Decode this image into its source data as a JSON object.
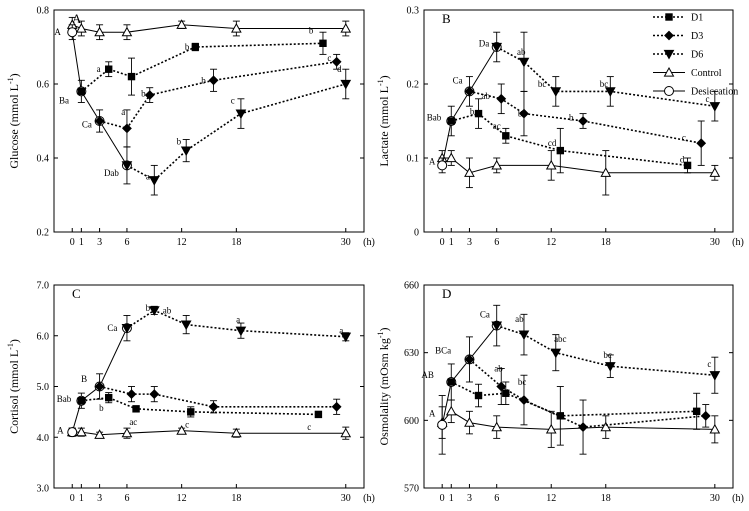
{
  "chart_data": [
    {
      "panel": "A",
      "type": "line",
      "ylabel": "Glucose (mmol L",
      "ylabel_sup": "-1",
      "ylabel_close": ")",
      "ylim": [
        0.2,
        0.8
      ],
      "yticks": [
        0.2,
        0.4,
        0.6,
        0.8
      ],
      "ytick_labels": [
        "0.2",
        "0.4",
        "0.6",
        "0.8"
      ],
      "series": [
        {
          "name": "Control",
          "x": [
            0,
            1,
            3,
            6,
            12,
            18,
            30
          ],
          "y": [
            0.76,
            0.75,
            0.74,
            0.74,
            0.76,
            0.75,
            0.75
          ],
          "err": [
            0.02,
            0.02,
            0.02,
            0.02,
            0.01,
            0.02,
            0.02
          ]
        },
        {
          "name": "Desiccation",
          "x": [
            0,
            1,
            3,
            6
          ],
          "y": [
            0.74,
            0.58,
            0.5,
            0.38
          ],
          "err": [
            0.02,
            0.03,
            0.03,
            0.05
          ]
        },
        {
          "name": "D1",
          "x": [
            1,
            4,
            6.5,
            13.5,
            27.5
          ],
          "y": [
            0.58,
            0.64,
            0.62,
            0.7,
            0.71
          ],
          "err": [
            0.0,
            0.02,
            0.05,
            0.01,
            0.03
          ]
        },
        {
          "name": "D3",
          "x": [
            3,
            6,
            8.5,
            15.5,
            29
          ],
          "y": [
            0.5,
            0.48,
            0.57,
            0.61,
            0.66
          ],
          "err": [
            0.0,
            0.05,
            0.02,
            0.03,
            0.02
          ]
        },
        {
          "name": "D6",
          "x": [
            6,
            9,
            12.5,
            18.5,
            30
          ],
          "y": [
            0.38,
            0.34,
            0.42,
            0.52,
            0.6
          ],
          "err": [
            0.0,
            0.04,
            0.03,
            0.04,
            0.04
          ]
        }
      ],
      "annotations": [
        {
          "text": "A",
          "x": -1.6,
          "y": 0.74
        },
        {
          "text": "Ba",
          "x": -0.9,
          "y": 0.555
        },
        {
          "text": "Ca",
          "x": 1.6,
          "y": 0.49
        },
        {
          "text": "Dab",
          "x": 4.3,
          "y": 0.36
        },
        {
          "text": "a",
          "x": 2.9,
          "y": 0.64
        },
        {
          "text": "a",
          "x": 5.6,
          "y": 0.525
        },
        {
          "text": "b",
          "x": 12.6,
          "y": 0.7
        },
        {
          "text": "b",
          "x": 26.2,
          "y": 0.745
        },
        {
          "text": "b",
          "x": 7.8,
          "y": 0.575
        },
        {
          "text": "b",
          "x": 14.4,
          "y": 0.61
        },
        {
          "text": "c",
          "x": 28.2,
          "y": 0.67
        },
        {
          "text": "a",
          "x": 8.3,
          "y": 0.35
        },
        {
          "text": "b",
          "x": 11.7,
          "y": 0.445
        },
        {
          "text": "c",
          "x": 17.6,
          "y": 0.555
        },
        {
          "text": "d",
          "x": 29.3,
          "y": 0.64
        }
      ]
    },
    {
      "panel": "B",
      "type": "line",
      "ylabel": "Lactate (mmol L",
      "ylabel_sup": "-1",
      "ylabel_close": ")",
      "ylim": [
        0,
        0.3
      ],
      "yticks": [
        0,
        0.1,
        0.2,
        0.3
      ],
      "ytick_labels": [
        "0",
        "0.1",
        "0.2",
        "0.3"
      ],
      "series": [
        {
          "name": "Control",
          "x": [
            0,
            1,
            3,
            6,
            12,
            18,
            30
          ],
          "y": [
            0.1,
            0.1,
            0.08,
            0.09,
            0.09,
            0.08,
            0.08
          ],
          "err": [
            0.01,
            0.01,
            0.02,
            0.01,
            0.02,
            0.03,
            0.01
          ]
        },
        {
          "name": "Desiccation",
          "x": [
            0,
            1,
            3,
            6
          ],
          "y": [
            0.09,
            0.15,
            0.19,
            0.25
          ],
          "err": [
            0.01,
            0.02,
            0.02,
            0.02
          ]
        },
        {
          "name": "D1",
          "x": [
            1,
            4,
            7,
            13,
            27
          ],
          "y": [
            0.15,
            0.16,
            0.13,
            0.11,
            0.09
          ],
          "err": [
            0.0,
            0.02,
            0.01,
            0.03,
            0.01
          ]
        },
        {
          "name": "D3",
          "x": [
            3,
            6.5,
            9,
            15.5,
            28.5
          ],
          "y": [
            0.19,
            0.18,
            0.16,
            0.15,
            0.12
          ],
          "err": [
            0.0,
            0.02,
            0.03,
            0.01,
            0.03
          ]
        },
        {
          "name": "D6",
          "x": [
            6,
            9,
            12.5,
            18.5,
            30
          ],
          "y": [
            0.25,
            0.23,
            0.19,
            0.19,
            0.17
          ],
          "err": [
            0.0,
            0.04,
            0.02,
            0.02,
            0.02
          ]
        }
      ],
      "annotations": [
        {
          "text": "A",
          "x": -1.1,
          "y": 0.095
        },
        {
          "text": "Bab",
          "x": -0.9,
          "y": 0.155
        },
        {
          "text": "Ca",
          "x": 1.7,
          "y": 0.205
        },
        {
          "text": "Da",
          "x": 4.6,
          "y": 0.255
        },
        {
          "text": "b",
          "x": 3.3,
          "y": 0.163
        },
        {
          "text": "ab",
          "x": 4.8,
          "y": 0.184
        },
        {
          "text": "ac",
          "x": 6.0,
          "y": 0.143
        },
        {
          "text": "ab",
          "x": 8.7,
          "y": 0.243
        },
        {
          "text": "bc",
          "x": 8.8,
          "y": 0.16
        },
        {
          "text": "bc",
          "x": 11.0,
          "y": 0.2
        },
        {
          "text": "cd",
          "x": 12.1,
          "y": 0.12
        },
        {
          "text": "b",
          "x": 14.2,
          "y": 0.155
        },
        {
          "text": "bc",
          "x": 17.8,
          "y": 0.2
        },
        {
          "text": "c",
          "x": 26.6,
          "y": 0.128
        },
        {
          "text": "d",
          "x": 26.4,
          "y": 0.098
        },
        {
          "text": "c",
          "x": 29.2,
          "y": 0.18
        }
      ]
    },
    {
      "panel": "C",
      "type": "line",
      "ylabel": "Cortisol (mmol L",
      "ylabel_sup": "-1",
      "ylabel_close": ")",
      "ylim": [
        3.0,
        7.0
      ],
      "yticks": [
        3.0,
        4.0,
        5.0,
        6.0,
        7.0
      ],
      "ytick_labels": [
        "3.0",
        "4.0",
        "5.0",
        "6.0",
        "7.0"
      ],
      "series": [
        {
          "name": "Control",
          "x": [
            0,
            1,
            3,
            6,
            12,
            18,
            30
          ],
          "y": [
            4.1,
            4.1,
            4.05,
            4.08,
            4.13,
            4.08,
            4.08
          ],
          "err": [
            0.08,
            0.08,
            0.05,
            0.1,
            0.05,
            0.08,
            0.12
          ]
        },
        {
          "name": "Desiccation",
          "x": [
            0,
            1,
            3,
            6
          ],
          "y": [
            4.1,
            4.72,
            5.0,
            6.15
          ],
          "err": [
            0.08,
            0.15,
            0.25,
            0.25
          ]
        },
        {
          "name": "D1",
          "x": [
            1,
            4,
            7,
            13,
            27
          ],
          "y": [
            4.72,
            4.78,
            4.56,
            4.5,
            4.45
          ],
          "err": [
            0.0,
            0.1,
            0.05,
            0.1,
            0.05
          ]
        },
        {
          "name": "D3",
          "x": [
            3,
            6.5,
            9,
            15.5,
            29
          ],
          "y": [
            5.0,
            4.85,
            4.85,
            4.6,
            4.6
          ],
          "err": [
            0.0,
            0.15,
            0.15,
            0.12,
            0.15
          ]
        },
        {
          "name": "D6",
          "x": [
            6,
            9,
            12.5,
            18.5,
            30
          ],
          "y": [
            6.15,
            6.5,
            6.22,
            6.1,
            5.98
          ],
          "err": [
            0.0,
            0.08,
            0.18,
            0.15,
            0.08
          ]
        }
      ],
      "annotations": [
        {
          "text": "A",
          "x": -1.3,
          "y": 4.13
        },
        {
          "text": "Bab",
          "x": -0.9,
          "y": 4.75
        },
        {
          "text": "B",
          "x": 1.3,
          "y": 5.15
        },
        {
          "text": "Ca",
          "x": 4.4,
          "y": 6.15
        },
        {
          "text": "b",
          "x": 3.2,
          "y": 4.58
        },
        {
          "text": "ac",
          "x": 6.7,
          "y": 4.3
        },
        {
          "text": "c",
          "x": 12.6,
          "y": 4.25
        },
        {
          "text": "c",
          "x": 26.0,
          "y": 4.2
        },
        {
          "text": "b",
          "x": 8.3,
          "y": 6.55
        },
        {
          "text": "ab",
          "x": 10.4,
          "y": 6.5
        },
        {
          "text": "a",
          "x": 18.2,
          "y": 6.32
        },
        {
          "text": "a",
          "x": 29.5,
          "y": 6.1
        }
      ]
    },
    {
      "panel": "D",
      "type": "line",
      "ylabel": "Osmolality (mOsm kg",
      "ylabel_sup": "-1",
      "ylabel_close": ")",
      "ylim": [
        570,
        660
      ],
      "yticks": [
        570,
        600,
        630,
        660
      ],
      "ytick_labels": [
        "570",
        "600",
        "630",
        "660"
      ],
      "series": [
        {
          "name": "Control",
          "x": [
            0,
            1,
            3,
            6,
            12,
            18,
            30
          ],
          "y": [
            599,
            604,
            599,
            597,
            596,
            597,
            596
          ],
          "err": [
            7,
            5,
            5,
            5,
            8,
            5,
            6
          ]
        },
        {
          "name": "Desiccation",
          "x": [
            0,
            1,
            3,
            6
          ],
          "y": [
            598,
            617,
            627,
            642
          ],
          "err": [
            13,
            8,
            10,
            9
          ]
        },
        {
          "name": "D1",
          "x": [
            1,
            4,
            7,
            13,
            28
          ],
          "y": [
            617,
            611,
            612,
            602,
            604
          ],
          "err": [
            0,
            5,
            5,
            13,
            8
          ]
        },
        {
          "name": "D3",
          "x": [
            3,
            6.5,
            9,
            15.5,
            29
          ],
          "y": [
            627,
            615,
            609,
            597,
            602
          ],
          "err": [
            0,
            8,
            11,
            12,
            5
          ]
        },
        {
          "name": "D6",
          "x": [
            6,
            9,
            12.5,
            18.5,
            30
          ],
          "y": [
            642,
            638,
            630,
            624,
            620
          ],
          "err": [
            0,
            9,
            8,
            5,
            8
          ]
        }
      ],
      "annotations": [
        {
          "text": "A",
          "x": -1.1,
          "y": 603
        },
        {
          "text": "AB",
          "x": -1.6,
          "y": 620
        },
        {
          "text": "BCa",
          "x": 0.1,
          "y": 631
        },
        {
          "text": "Ca",
          "x": 4.7,
          "y": 647
        },
        {
          "text": "ab",
          "x": 8.5,
          "y": 645
        },
        {
          "text": "ab",
          "x": 6.2,
          "y": 623
        },
        {
          "text": "bc",
          "x": 8.8,
          "y": 617
        },
        {
          "text": "abc",
          "x": 13.0,
          "y": 636
        },
        {
          "text": "bc",
          "x": 18.2,
          "y": 629
        },
        {
          "text": "c",
          "x": 29.4,
          "y": 625
        }
      ]
    }
  ],
  "x_axis": {
    "ticks": [
      0,
      1,
      3,
      6,
      12,
      18,
      30
    ],
    "tick_labels": [
      "0",
      "1",
      "3",
      "6",
      "12",
      "18",
      "30"
    ],
    "unit": "(h)",
    "xlim": [
      -2,
      32
    ]
  },
  "legend": {
    "placement": "top-right of panel B",
    "entries": [
      "D1",
      "D3",
      "D6",
      "Control",
      "Desiccation"
    ]
  },
  "colors": {
    "line": "#000000",
    "marker_fill": "#ffffff",
    "filled_marker": "#000000"
  }
}
